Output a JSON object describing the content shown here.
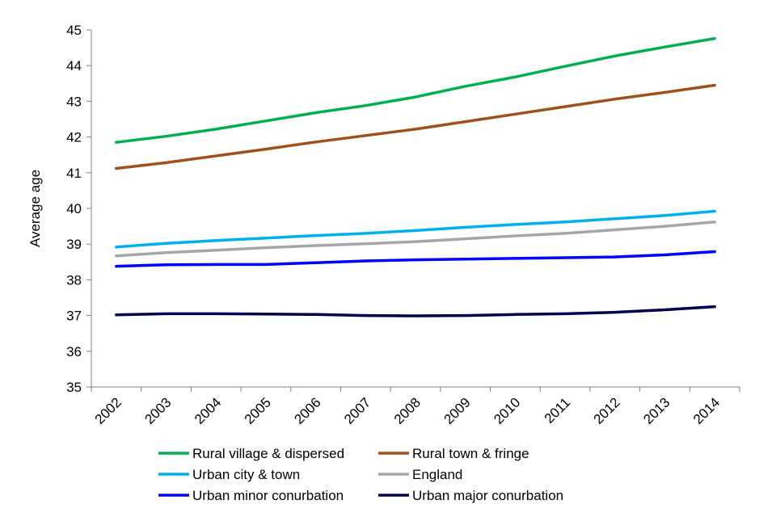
{
  "chart_data": {
    "type": "line",
    "title": "",
    "xlabel": "",
    "ylabel": "Average age",
    "ylim": [
      35,
      45
    ],
    "y_ticks": [
      35,
      36,
      37,
      38,
      39,
      40,
      41,
      42,
      43,
      44,
      45
    ],
    "grid": false,
    "legend_position": "bottom",
    "categories": [
      "2002",
      "2003",
      "2004",
      "2005",
      "2006",
      "2007",
      "2008",
      "2009",
      "2010",
      "2011",
      "2012",
      "2013",
      "2014"
    ],
    "series": [
      {
        "name": "Rural village & dispersed",
        "color": "#00B050",
        "values": [
          41.85,
          42.02,
          42.22,
          42.45,
          42.68,
          42.88,
          43.12,
          43.42,
          43.68,
          43.98,
          44.27,
          44.52,
          44.76
        ]
      },
      {
        "name": "Rural town & fringe",
        "color": "#A0501A",
        "values": [
          41.12,
          41.28,
          41.47,
          41.66,
          41.86,
          42.04,
          42.22,
          42.43,
          42.64,
          42.85,
          43.06,
          43.25,
          43.45
        ]
      },
      {
        "name": "Urban city & town",
        "color": "#00B0F0",
        "values": [
          38.92,
          39.02,
          39.1,
          39.17,
          39.24,
          39.3,
          39.38,
          39.47,
          39.55,
          39.62,
          39.71,
          39.8,
          39.92
        ]
      },
      {
        "name": "England",
        "color": "#A6A6A6",
        "values": [
          38.67,
          38.76,
          38.83,
          38.9,
          38.96,
          39.01,
          39.07,
          39.15,
          39.23,
          39.3,
          39.4,
          39.5,
          39.62
        ]
      },
      {
        "name": "Urban minor conurbation",
        "color": "#0000FF",
        "values": [
          38.38,
          38.42,
          38.43,
          38.43,
          38.48,
          38.53,
          38.56,
          38.58,
          38.6,
          38.62,
          38.64,
          38.7,
          38.79
        ]
      },
      {
        "name": "Urban major conurbation",
        "color": "#000050",
        "values": [
          37.02,
          37.05,
          37.05,
          37.04,
          37.03,
          37.0,
          36.99,
          37.0,
          37.03,
          37.05,
          37.09,
          37.16,
          37.25
        ]
      }
    ]
  }
}
